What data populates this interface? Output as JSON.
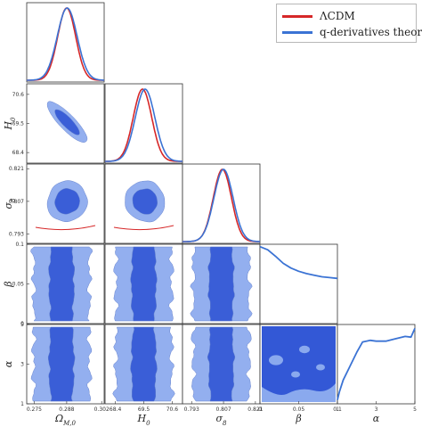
{
  "colors": {
    "lcdm": "#d62728",
    "qderiv": "#3b73d4",
    "fill_outer": "#8aa9ee",
    "fill_inner": "#3358d6"
  },
  "legend": [
    {
      "label": "ΛCDM",
      "color": "#d62728"
    },
    {
      "label": "q-derivatives theory",
      "color": "#3b73d4"
    }
  ],
  "chart_data": {
    "type": "corner",
    "parameters": [
      {
        "name": "omega_m0",
        "label": "Ω",
        "sub": "M,0",
        "range": [
          0.272,
          0.303
        ],
        "ticks": [
          "0.275",
          "0.288",
          "0.302"
        ]
      },
      {
        "name": "H0",
        "label": "H",
        "sub": "0",
        "range": [
          68.0,
          71.0
        ],
        "ticks": [
          "68.4",
          "69.5",
          "70.6"
        ]
      },
      {
        "name": "sigma8",
        "label": "σ",
        "sub": "8",
        "range": [
          0.789,
          0.823
        ],
        "ticks": [
          "0.793",
          "0.807",
          "0.821"
        ]
      },
      {
        "name": "beta",
        "label": "β",
        "sub": "",
        "range": [
          0.0,
          0.1
        ],
        "ticks": [
          "0",
          "0.05",
          "0.1"
        ]
      },
      {
        "name": "alpha",
        "label": "α",
        "sub": "",
        "range": [
          1,
          5
        ],
        "ticks": [
          "1",
          "3",
          "5"
        ]
      }
    ],
    "marginals": {
      "omega_m0": {
        "lcdm": {
          "mean": 0.288,
          "sd": 0.0036
        },
        "qderiv": {
          "mean": 0.2882,
          "sd": 0.004
        }
      },
      "H0": {
        "lcdm": {
          "mean": 69.45,
          "sd": 0.36
        },
        "qderiv": {
          "mean": 69.55,
          "sd": 0.38
        }
      },
      "sigma8": {
        "lcdm": {
          "mean": 0.8065,
          "sd": 0.004
        },
        "qderiv": {
          "mean": 0.807,
          "sd": 0.0042
        }
      },
      "beta": {
        "qderiv_curve": [
          [
            0.0,
            0.97
          ],
          [
            0.01,
            0.93
          ],
          [
            0.02,
            0.85
          ],
          [
            0.03,
            0.76
          ],
          [
            0.04,
            0.7
          ],
          [
            0.05,
            0.66
          ],
          [
            0.06,
            0.63
          ],
          [
            0.07,
            0.61
          ],
          [
            0.08,
            0.59
          ],
          [
            0.09,
            0.58
          ],
          [
            0.1,
            0.57
          ]
        ]
      },
      "alpha": {
        "qderiv_curve": [
          [
            1.0,
            0.05
          ],
          [
            1.1,
            0.15
          ],
          [
            1.3,
            0.3
          ],
          [
            1.6,
            0.45
          ],
          [
            2.0,
            0.65
          ],
          [
            2.3,
            0.78
          ],
          [
            2.7,
            0.8
          ],
          [
            3.0,
            0.79
          ],
          [
            3.5,
            0.79
          ],
          [
            4.0,
            0.82
          ],
          [
            4.5,
            0.85
          ],
          [
            4.8,
            0.84
          ],
          [
            5.0,
            0.95
          ]
        ]
      }
    },
    "correlations": {
      "H0|omega_m0": -0.85,
      "sigma8|omega_m0": 0.05,
      "sigma8|H0": -0.05,
      "beta|omega_m0": 0.0,
      "beta|H0": 0.0,
      "beta|sigma8": 0.0,
      "alpha|omega_m0": 0.0,
      "alpha|H0": 0.0,
      "alpha|sigma8": 0.0,
      "alpha|beta": 0.0
    },
    "grid": false
  }
}
